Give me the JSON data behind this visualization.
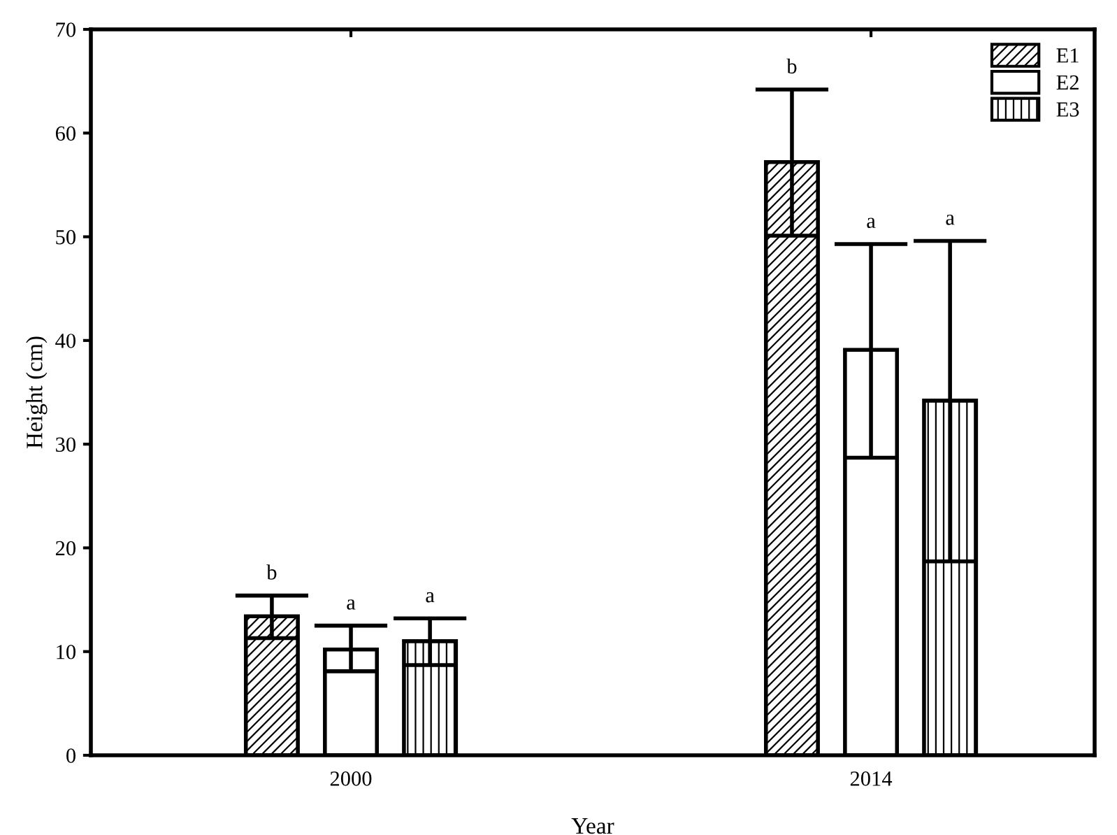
{
  "chart_data": {
    "type": "bar",
    "xlabel": "Year",
    "ylabel": "Height (cm)",
    "categories": [
      "2000",
      "2014"
    ],
    "series": [
      {
        "name": "E1",
        "color": "#000000",
        "values": [
          13.4,
          57.2
        ],
        "errors": [
          [
            11.3,
            15.4
          ],
          [
            50.1,
            64.2
          ]
        ]
      },
      {
        "name": "E2",
        "color": "#ffffff",
        "values": [
          10.2,
          39.1
        ],
        "errors": [
          [
            8.1,
            12.5
          ],
          [
            28.7,
            49.3
          ]
        ]
      },
      {
        "name": "E3",
        "color": "#000000",
        "values": [
          11.0,
          34.2
        ],
        "errors": [
          [
            8.7,
            13.2
          ],
          [
            18.7,
            49.6
          ]
        ]
      }
    ],
    "ylim": [
      0,
      70
    ],
    "yticks": [
      0,
      10,
      20,
      30,
      40,
      50,
      60,
      70
    ],
    "annotations": [
      "b",
      "a",
      "a",
      "b",
      "a",
      "a"
    ],
    "legend": "top right",
    "grid": false
  }
}
